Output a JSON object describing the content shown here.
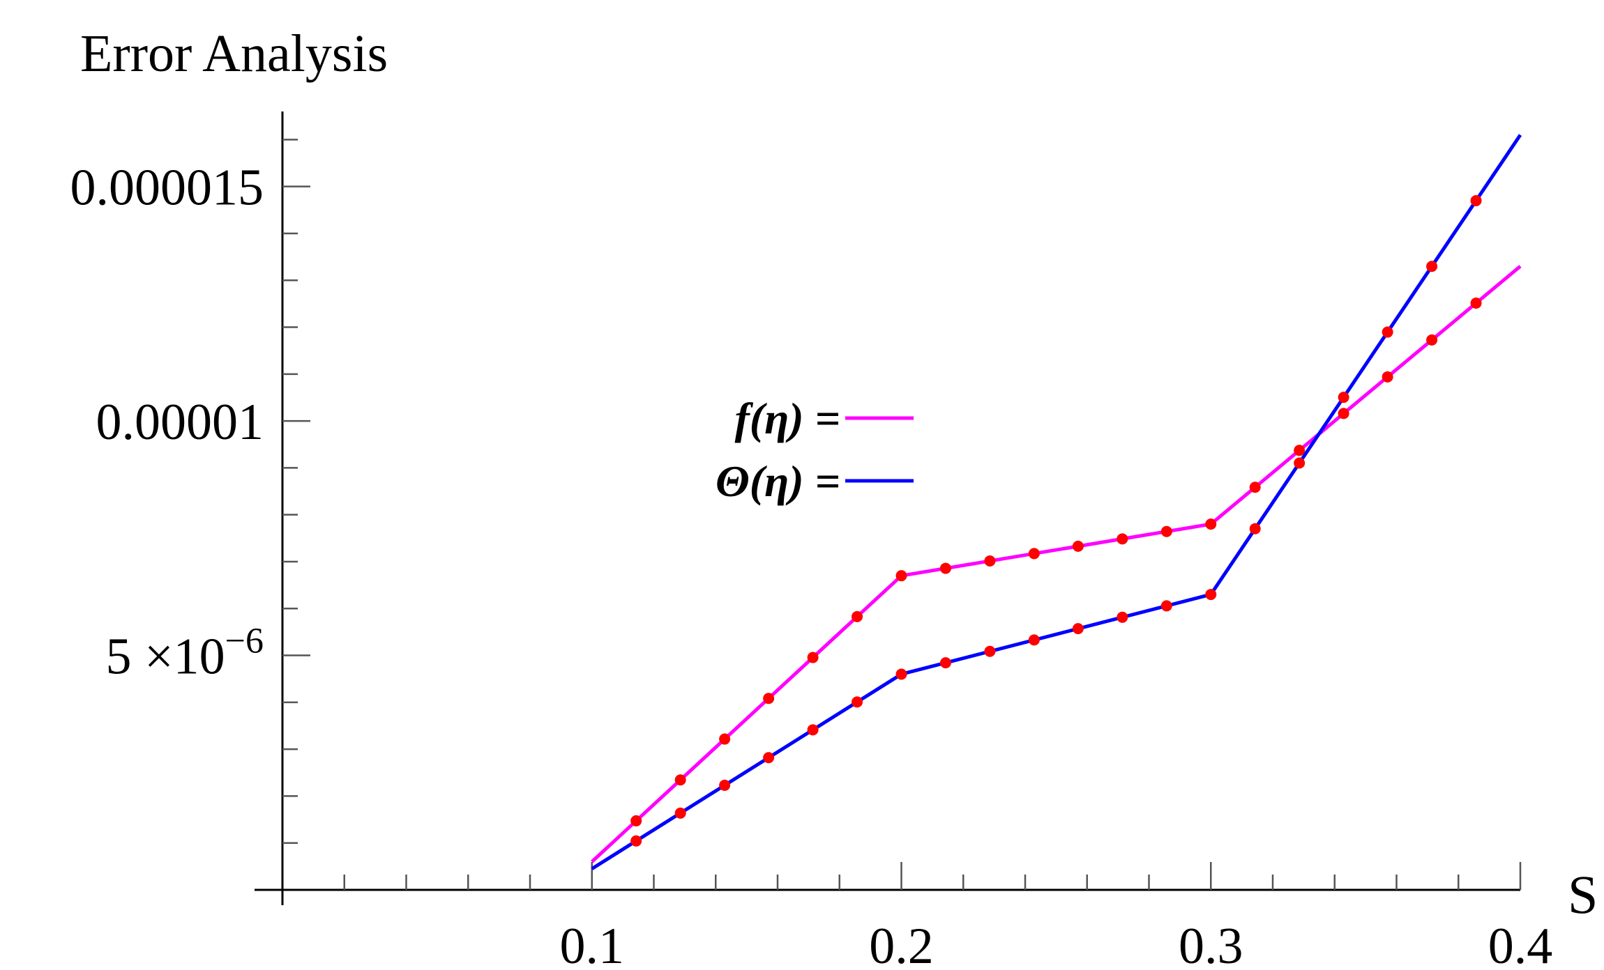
{
  "chart_data": {
    "type": "line",
    "title": "Error Analysis",
    "xlabel": "S",
    "ylabel": "",
    "xlim": [
      0.0,
      0.4
    ],
    "ylim": [
      0.0,
      1.66e-05
    ],
    "x_ticks": [
      {
        "value": 0.1,
        "label": "0.1"
      },
      {
        "value": 0.2,
        "label": "0.2"
      },
      {
        "value": 0.3,
        "label": "0.3"
      },
      {
        "value": 0.4,
        "label": "0.4"
      }
    ],
    "y_ticks": [
      {
        "value": 5e-06,
        "label": "5 ×10",
        "exponent": "−6"
      },
      {
        "value": 1e-05,
        "label": "0.00001",
        "exponent": ""
      },
      {
        "value": 1.5e-05,
        "label": "0.000015",
        "exponent": ""
      }
    ],
    "grid": false,
    "legend_position": "center",
    "series": [
      {
        "name": "f(η) =",
        "color": "#ff00ff",
        "x": [
          0.1,
          0.2,
          0.3,
          0.4
        ],
        "y": [
          6e-07,
          6.7e-06,
          7.8e-06,
          1.33e-05
        ]
      },
      {
        "name": "Θ(η) =",
        "color": "#0000ff",
        "x": [
          0.1,
          0.2,
          0.3,
          0.4
        ],
        "y": [
          4.5e-07,
          4.6e-06,
          6.3e-06,
          1.61e-05
        ]
      }
    ],
    "marker_color": "#ff0000",
    "marker_x": [
      0.1143,
      0.1286,
      0.1429,
      0.1571,
      0.1714,
      0.1857,
      0.2,
      0.2143,
      0.2286,
      0.2429,
      0.2571,
      0.2714,
      0.2857,
      0.3,
      0.3143,
      0.3286,
      0.3429,
      0.3571,
      0.3714,
      0.3857
    ]
  }
}
